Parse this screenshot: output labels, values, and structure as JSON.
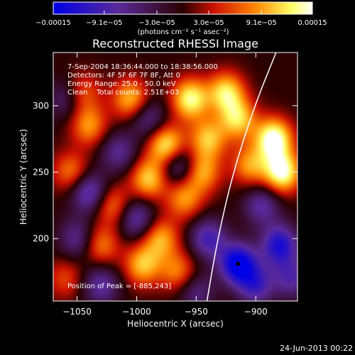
{
  "chart_data": {
    "type": "heatmap",
    "title": "Reconstructed RHESSI Image",
    "xlabel": "Heliocentric X (arcsec)",
    "ylabel": "Heliocentric Y (arcsec)",
    "xlim": [
      -1070,
      -865
    ],
    "ylim": [
      153,
      340
    ],
    "x_ticks": [
      -1050,
      -1000,
      -950,
      -900
    ],
    "x_tick_labels": [
      "−1050",
      "−1000",
      "−950",
      "−900"
    ],
    "y_ticks": [
      200,
      250,
      300
    ],
    "y_tick_labels": [
      "200",
      "250",
      "300"
    ],
    "colorbar": {
      "min": -0.00015,
      "max": 0.00015,
      "ticks": [
        -0.00015,
        -9.1e-05,
        -3e-05,
        3e-05,
        9.1e-05,
        0.00015
      ],
      "tick_labels": [
        "−0.00015",
        "−9.1e−05",
        "−3.0e−05",
        "3.0e−05",
        "9.1e−05",
        "0.00015"
      ],
      "unit_label": "(photons cm⁻² s⁻¹ asec⁻²)",
      "colors": [
        "#0000e6",
        "#5a2a9a",
        "#2a0000",
        "#cc1100",
        "#ff8800",
        "#ffff66",
        "#ffffff"
      ]
    },
    "info_lines": [
      "7-Sep-2004 18:36:44.000 to 18:38:56.000",
      "Detectors: 4F 5F 6F 7F 8F, Att 0",
      "Energy Range: 25.0 - 50.0 keV",
      "Clean    Total counts: 2.51E+03"
    ],
    "peak_label": "Position of Peak = [-885,243]",
    "peak": [
      -885,
      243
    ],
    "minimum_marker": [
      -915,
      181
    ],
    "limb_curve": [
      [
        -941,
        153
      ],
      [
        -932,
        200
      ],
      [
        -919,
        250
      ],
      [
        -901,
        300
      ],
      [
        -883,
        340
      ]
    ],
    "blobs": [
      {
        "x": -955,
        "y": 305,
        "v": 0.85
      },
      {
        "x": -940,
        "y": 275,
        "v": 0.65
      },
      {
        "x": -915,
        "y": 290,
        "v": 0.7
      },
      {
        "x": -885,
        "y": 275,
        "v": 1.0
      },
      {
        "x": -878,
        "y": 250,
        "v": 0.95
      },
      {
        "x": -905,
        "y": 255,
        "v": 0.55
      },
      {
        "x": -925,
        "y": 310,
        "v": 0.75
      },
      {
        "x": -975,
        "y": 270,
        "v": 0.85
      },
      {
        "x": -990,
        "y": 245,
        "v": 0.7
      },
      {
        "x": -1005,
        "y": 305,
        "v": 0.65
      },
      {
        "x": -1040,
        "y": 285,
        "v": 0.55
      },
      {
        "x": -1055,
        "y": 250,
        "v": 0.5
      },
      {
        "x": -1020,
        "y": 225,
        "v": 0.5
      },
      {
        "x": -960,
        "y": 230,
        "v": 0.55
      },
      {
        "x": -945,
        "y": 250,
        "v": 0.6
      },
      {
        "x": -1030,
        "y": 195,
        "v": 0.5
      },
      {
        "x": -995,
        "y": 180,
        "v": 0.65
      },
      {
        "x": -980,
        "y": 200,
        "v": 0.6
      },
      {
        "x": -965,
        "y": 175,
        "v": 0.5
      },
      {
        "x": -1060,
        "y": 170,
        "v": 0.35
      },
      {
        "x": -1045,
        "y": 310,
        "v": 0.4
      },
      {
        "x": -1015,
        "y": 265,
        "v": -0.45
      },
      {
        "x": -1040,
        "y": 235,
        "v": -0.65
      },
      {
        "x": -1060,
        "y": 305,
        "v": -0.35
      },
      {
        "x": -990,
        "y": 290,
        "v": -0.45
      },
      {
        "x": -965,
        "y": 255,
        "v": -0.55
      },
      {
        "x": -1000,
        "y": 215,
        "v": -0.55
      },
      {
        "x": -1050,
        "y": 200,
        "v": -0.45
      },
      {
        "x": -1030,
        "y": 165,
        "v": -0.5
      },
      {
        "x": -940,
        "y": 200,
        "v": -0.6
      },
      {
        "x": -915,
        "y": 181,
        "v": -1.0
      },
      {
        "x": -880,
        "y": 195,
        "v": -0.8
      },
      {
        "x": -900,
        "y": 165,
        "v": -0.6
      },
      {
        "x": -895,
        "y": 225,
        "v": -0.5
      },
      {
        "x": -870,
        "y": 170,
        "v": -0.5
      },
      {
        "x": -950,
        "y": 160,
        "v": -0.4
      }
    ]
  },
  "footer": {
    "timestamp": "24-Jun-2013 00:22"
  }
}
